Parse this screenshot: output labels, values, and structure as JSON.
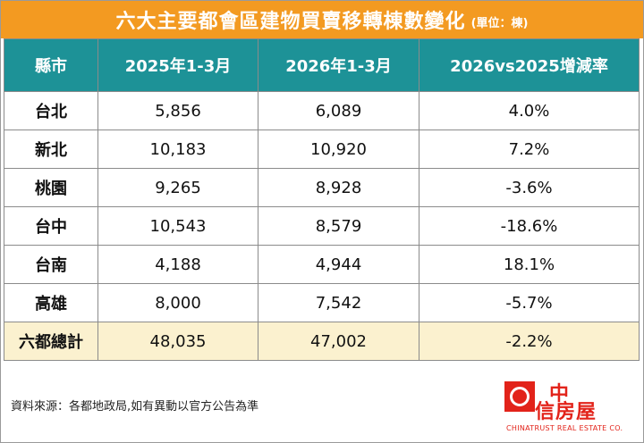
{
  "title": "六大主要都會區建物買賣移轉棟數變化",
  "unit_note": "(單位：棟)",
  "table": {
    "headers": [
      "縣市",
      "2025年1-3月",
      "2026年1-3月",
      "2026vs2025增減率"
    ],
    "rows": [
      {
        "city": "台北",
        "y2025": "5,856",
        "y2026": "6,089",
        "change": "4.0%",
        "direction": "up"
      },
      {
        "city": "新北",
        "y2025": "10,183",
        "y2026": "10,920",
        "change": "7.2%",
        "direction": "up"
      },
      {
        "city": "桃園",
        "y2025": "9,265",
        "y2026": "8,928",
        "change": "-3.6%",
        "direction": "down"
      },
      {
        "city": "台中",
        "y2025": "10,543",
        "y2026": "8,579",
        "change": "-18.6%",
        "direction": "down"
      },
      {
        "city": "台南",
        "y2025": "4,188",
        "y2026": "4,944",
        "change": "18.1%",
        "direction": "up"
      },
      {
        "city": "高雄",
        "y2025": "8,000",
        "y2026": "7,542",
        "change": "-5.7%",
        "direction": "down"
      }
    ],
    "total": {
      "city": "六都總計",
      "y2025": "48,035",
      "y2026": "47,002",
      "change": "-2.2%",
      "direction": "down"
    }
  },
  "source_note": "資料來源：各都地政局,如有異動以官方公告為準",
  "logo": {
    "text_line1": "中",
    "text_line2": "信房屋",
    "text_en": "CHINATRUST REAL ESTATE CO.",
    "icon": "chinatrust-logo-mark"
  },
  "colors": {
    "title_bg": "#f39a21",
    "header_bg": "#1d9297",
    "total_row_bg": "#fbf1cf",
    "positive_change": "#e3202a",
    "negative_change": "#1aa34a",
    "brand_red": "#e2231a"
  }
}
